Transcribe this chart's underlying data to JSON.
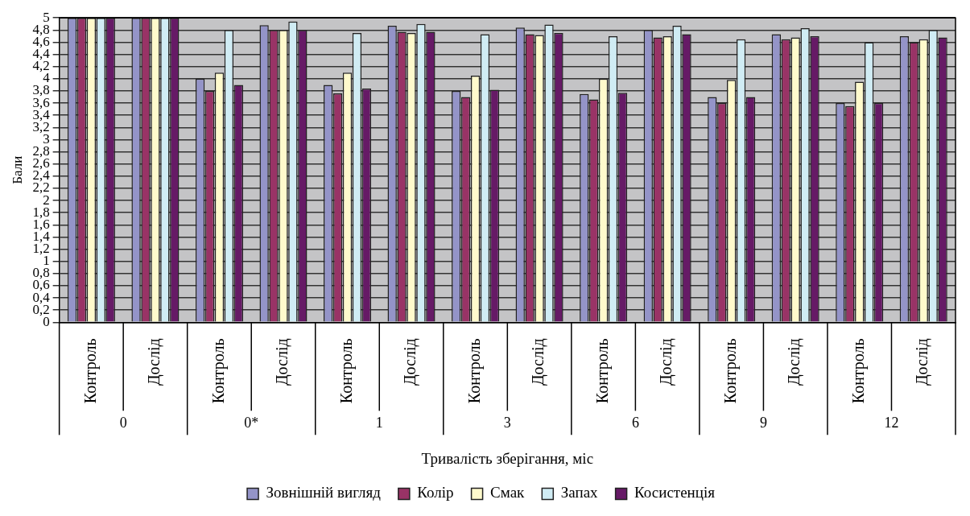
{
  "chart_data": {
    "type": "bar",
    "xlabel": "Тривалість зберігання, міс",
    "ylabel": "Бали",
    "categories": [
      "Контроль",
      "Дослід",
      "Контроль",
      "Дослід",
      "Контроль",
      "Дослід",
      "Контроль",
      "Дослід",
      "Контроль",
      "Дослід",
      "Контроль",
      "Дослід",
      "Контроль",
      "Дослід"
    ],
    "annotations": [
      "0",
      "0*",
      "1",
      "3",
      "6",
      "9",
      "12"
    ],
    "series": [
      {
        "name": "Зовнішній вигляд",
        "color": "#9494c8",
        "values": [
          5,
          5,
          4.0,
          4.88,
          3.9,
          4.87,
          3.8,
          4.84,
          3.75,
          4.8,
          3.7,
          4.73,
          3.6,
          4.7
        ]
      },
      {
        "name": "Колір",
        "color": "#993366",
        "values": [
          5,
          5,
          3.8,
          4.8,
          3.76,
          4.77,
          3.7,
          4.73,
          3.66,
          4.68,
          3.6,
          4.65,
          3.55,
          4.6
        ]
      },
      {
        "name": "Смак",
        "color": "#fffacc",
        "values": [
          5,
          5,
          4.1,
          4.8,
          4.1,
          4.75,
          4.05,
          4.72,
          4.0,
          4.7,
          3.98,
          4.68,
          3.95,
          4.65
        ]
      },
      {
        "name": "Запах",
        "color": "#d0ecf4",
        "values": [
          5,
          5,
          4.8,
          4.94,
          4.75,
          4.9,
          4.73,
          4.89,
          4.7,
          4.87,
          4.65,
          4.83,
          4.6,
          4.8
        ]
      },
      {
        "name": "Косистенція",
        "color": "#661a66",
        "values": [
          5,
          5,
          3.9,
          4.8,
          3.84,
          4.77,
          3.82,
          4.75,
          3.77,
          4.73,
          3.7,
          4.7,
          3.6,
          4.68
        ]
      }
    ],
    "ylim": [
      0,
      5
    ],
    "yticks": [
      0,
      {
        "value": 0.2,
        "label": "0,2"
      },
      {
        "value": 0.4,
        "label": "0,4"
      },
      {
        "value": 0.6,
        "label": "0,6"
      },
      {
        "value": 0.8,
        "label": "0,8"
      },
      1,
      {
        "value": 1.2,
        "label": "1,2"
      },
      {
        "value": 1.4,
        "label": "1,4"
      },
      {
        "value": 1.6,
        "label": "1,6"
      },
      {
        "value": 1.8,
        "label": "1,8"
      },
      2,
      {
        "value": 2.2,
        "label": "2,2"
      },
      {
        "value": 2.4,
        "label": "2,4"
      },
      {
        "value": 2.6,
        "label": "2,6"
      },
      {
        "value": 2.8,
        "label": "2,8"
      },
      3,
      {
        "value": 3.2,
        "label": "3,2"
      },
      {
        "value": 3.4,
        "label": "3,4"
      },
      {
        "value": 3.6,
        "label": "3,6"
      },
      {
        "value": 3.8,
        "label": "3,8"
      },
      4,
      {
        "value": 4.2,
        "label": "4,2"
      },
      {
        "value": 4.4,
        "label": "4,4"
      },
      {
        "value": 4.6,
        "label": "4,6"
      },
      {
        "value": 4.8,
        "label": "4,8"
      },
      5
    ],
    "grid": "y",
    "legend": "bottom"
  }
}
